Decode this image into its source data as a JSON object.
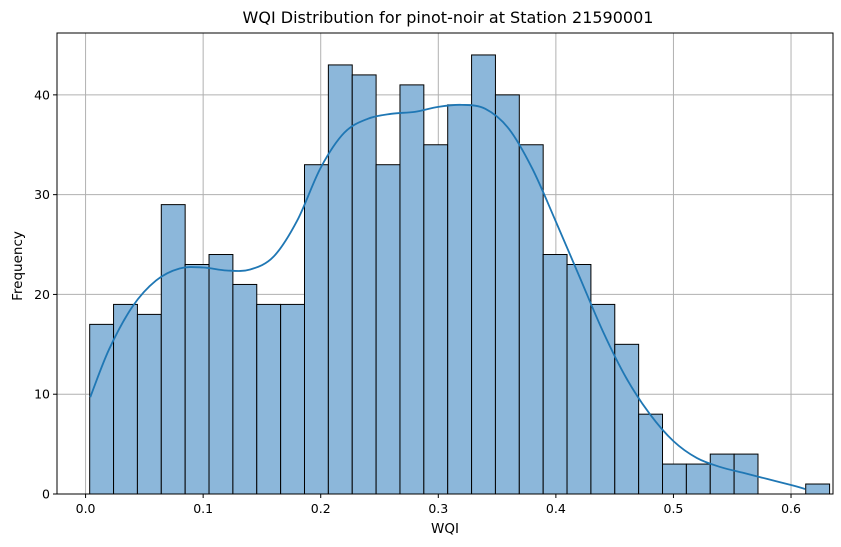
{
  "chart_data": {
    "type": "bar",
    "title": "WQI Distribution for pinot-noir at Station 21590001",
    "xlabel": "WQI",
    "ylabel": "Frequency",
    "xlim": [
      -0.0243,
      0.6357
    ],
    "ylim": [
      0,
      46.2
    ],
    "xticks": [
      0.0,
      0.1,
      0.2,
      0.3,
      0.4,
      0.5,
      0.6
    ],
    "xtick_labels": [
      "0.0",
      "0.1",
      "0.2",
      "0.3",
      "0.4",
      "0.5",
      "0.6"
    ],
    "yticks": [
      0,
      10,
      20,
      30,
      40
    ],
    "ytick_labels": [
      "0",
      "10",
      "20",
      "30",
      "40"
    ],
    "grid": true,
    "bins": {
      "start": 0.0035,
      "width": 0.0203,
      "counts": [
        17,
        19,
        18,
        29,
        23,
        24,
        21,
        19,
        19,
        33,
        43,
        42,
        33,
        41,
        35,
        39,
        44,
        40,
        35,
        24,
        23,
        19,
        15,
        8,
        3,
        3,
        4,
        4,
        0,
        0,
        1
      ]
    },
    "kde": {
      "x": [
        0.004,
        0.02,
        0.04,
        0.06,
        0.08,
        0.1,
        0.12,
        0.14,
        0.16,
        0.18,
        0.2,
        0.22,
        0.24,
        0.26,
        0.28,
        0.3,
        0.32,
        0.34,
        0.36,
        0.38,
        0.4,
        0.42,
        0.44,
        0.46,
        0.48,
        0.5,
        0.52,
        0.54,
        0.56,
        0.58,
        0.6,
        0.612
      ],
      "y": [
        9.7,
        14.5,
        18.8,
        21.4,
        22.6,
        22.7,
        22.4,
        22.5,
        23.8,
        27.4,
        32.7,
        36.2,
        37.6,
        38.1,
        38.3,
        38.8,
        39.0,
        38.6,
        36.6,
        32.6,
        27.3,
        21.8,
        16.3,
        11.6,
        8.0,
        5.3,
        3.6,
        2.7,
        2.1,
        1.5,
        0.9,
        0.5
      ]
    },
    "colors": {
      "bar_fill": "#8cb7da",
      "bar_edge": "#000000",
      "kde_line": "#1f77b4",
      "grid": "#b0b0b0"
    }
  }
}
